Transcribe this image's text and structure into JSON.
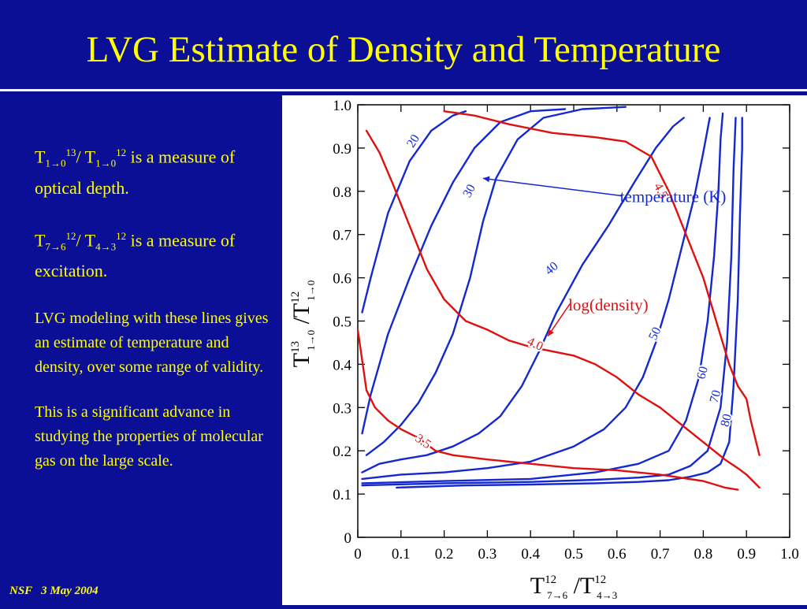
{
  "slide": {
    "title": "LVG Estimate of Density and Temperature",
    "footer": "NSF   3 May 2004",
    "bullets": [
      {
        "t": "T",
        "s1": "1→0",
        "p1": "13",
        "mid": "/ T",
        "s2": "1→0",
        "p2": "12",
        "tail": "  is a measure of optical depth."
      },
      {
        "t": "T",
        "s1": "7→6",
        "p1": "12",
        "mid": "/ T",
        "s2": "4→3",
        "p2": "12",
        "tail": "  is a measure of excitation."
      }
    ],
    "paragraphs": [
      "LVG modeling with these lines gives an estimate of temperature and density, over some range of validity.",
      "This is a significant advance in studying the properties of molecular gas on the large scale."
    ]
  },
  "chart_data": {
    "type": "line",
    "title": "",
    "xlim": [
      0,
      1.0
    ],
    "ylim": [
      0,
      1.0
    ],
    "xticks": [
      "0",
      "0.1",
      "0.2",
      "0.3",
      "0.4",
      "0.5",
      "0.6",
      "0.7",
      "0.8",
      "0.9",
      "1.0"
    ],
    "yticks": [
      "0",
      "0.1",
      "0.2",
      "0.3",
      "0.4",
      "0.5",
      "0.6",
      "0.7",
      "0.8",
      "0.9",
      "1.0"
    ],
    "xlabel": {
      "main": "T",
      "sup1": "12",
      "sub1": "7→6",
      "sep": " /T",
      "sup2": "12",
      "sub2": "4→3"
    },
    "ylabel": {
      "main": "T",
      "sup1": "13",
      "sub1": "1→0",
      "sep": " /T",
      "sup2": "12",
      "sub2": "1→0"
    },
    "annotations": [
      {
        "text": "temperature (K)",
        "color": "#1428d2",
        "x": 0.73,
        "y": 0.775,
        "arrow_to": [
          0.29,
          0.83
        ]
      },
      {
        "text": "log(density)",
        "color": "#e01010",
        "x": 0.58,
        "y": 0.525,
        "arrow_to": [
          0.44,
          0.465
        ]
      }
    ],
    "temperature_color": "#1428d2",
    "density_color": "#e01010",
    "temperature_series": [
      {
        "name": "20",
        "label_at": [
          0.13,
          0.915
        ],
        "label_angle": -58,
        "points": [
          [
            0.01,
            0.52
          ],
          [
            0.03,
            0.6
          ],
          [
            0.07,
            0.75
          ],
          [
            0.12,
            0.87
          ],
          [
            0.17,
            0.94
          ],
          [
            0.22,
            0.975
          ],
          [
            0.25,
            0.985
          ]
        ]
      },
      {
        "name": "",
        "points": [
          [
            0.01,
            0.24
          ],
          [
            0.03,
            0.33
          ],
          [
            0.07,
            0.47
          ],
          [
            0.12,
            0.6
          ],
          [
            0.17,
            0.72
          ],
          [
            0.22,
            0.82
          ],
          [
            0.27,
            0.9
          ],
          [
            0.33,
            0.96
          ],
          [
            0.4,
            0.985
          ],
          [
            0.48,
            0.99
          ]
        ]
      },
      {
        "name": "30",
        "label_at": [
          0.26,
          0.8
        ],
        "label_angle": -62,
        "points": [
          [
            0.02,
            0.19
          ],
          [
            0.06,
            0.22
          ],
          [
            0.1,
            0.26
          ],
          [
            0.14,
            0.31
          ],
          [
            0.18,
            0.38
          ],
          [
            0.22,
            0.47
          ],
          [
            0.26,
            0.6
          ],
          [
            0.29,
            0.73
          ],
          [
            0.32,
            0.83
          ],
          [
            0.37,
            0.92
          ],
          [
            0.43,
            0.97
          ],
          [
            0.52,
            0.99
          ],
          [
            0.62,
            0.995
          ]
        ]
      },
      {
        "name": "40",
        "label_at": [
          0.45,
          0.62
        ],
        "label_angle": -40,
        "points": [
          [
            0.01,
            0.15
          ],
          [
            0.05,
            0.17
          ],
          [
            0.1,
            0.18
          ],
          [
            0.16,
            0.19
          ],
          [
            0.22,
            0.21
          ],
          [
            0.28,
            0.24
          ],
          [
            0.33,
            0.28
          ],
          [
            0.38,
            0.35
          ],
          [
            0.42,
            0.43
          ],
          [
            0.46,
            0.52
          ],
          [
            0.52,
            0.63
          ],
          [
            0.58,
            0.72
          ],
          [
            0.64,
            0.82
          ],
          [
            0.69,
            0.9
          ],
          [
            0.73,
            0.95
          ],
          [
            0.755,
            0.97
          ]
        ]
      },
      {
        "name": "50",
        "label_at": [
          0.69,
          0.47
        ],
        "label_angle": -65,
        "points": [
          [
            0.01,
            0.135
          ],
          [
            0.1,
            0.145
          ],
          [
            0.2,
            0.15
          ],
          [
            0.3,
            0.16
          ],
          [
            0.4,
            0.175
          ],
          [
            0.5,
            0.21
          ],
          [
            0.57,
            0.25
          ],
          [
            0.62,
            0.3
          ],
          [
            0.66,
            0.37
          ],
          [
            0.69,
            0.45
          ],
          [
            0.72,
            0.55
          ],
          [
            0.75,
            0.67
          ],
          [
            0.78,
            0.79
          ],
          [
            0.8,
            0.89
          ],
          [
            0.815,
            0.97
          ]
        ]
      },
      {
        "name": "60",
        "label_at": [
          0.8,
          0.38
        ],
        "label_angle": -75,
        "points": [
          [
            0.01,
            0.125
          ],
          [
            0.2,
            0.13
          ],
          [
            0.4,
            0.135
          ],
          [
            0.55,
            0.15
          ],
          [
            0.65,
            0.17
          ],
          [
            0.72,
            0.2
          ],
          [
            0.76,
            0.27
          ],
          [
            0.79,
            0.37
          ],
          [
            0.81,
            0.5
          ],
          [
            0.825,
            0.65
          ],
          [
            0.835,
            0.8
          ],
          [
            0.84,
            0.92
          ],
          [
            0.845,
            0.98
          ]
        ]
      },
      {
        "name": "70",
        "label_at": [
          0.83,
          0.325
        ],
        "label_angle": -75,
        "points": [
          [
            0.01,
            0.12
          ],
          [
            0.2,
            0.125
          ],
          [
            0.4,
            0.128
          ],
          [
            0.55,
            0.133
          ],
          [
            0.65,
            0.138
          ],
          [
            0.72,
            0.145
          ],
          [
            0.77,
            0.165
          ],
          [
            0.81,
            0.2
          ],
          [
            0.84,
            0.3
          ],
          [
            0.855,
            0.45
          ],
          [
            0.865,
            0.65
          ],
          [
            0.87,
            0.85
          ],
          [
            0.875,
            0.97
          ]
        ]
      },
      {
        "name": "80",
        "label_at": [
          0.855,
          0.27
        ],
        "label_angle": -75,
        "points": [
          [
            0.09,
            0.115
          ],
          [
            0.25,
            0.12
          ],
          [
            0.4,
            0.122
          ],
          [
            0.55,
            0.125
          ],
          [
            0.65,
            0.128
          ],
          [
            0.72,
            0.132
          ],
          [
            0.77,
            0.14
          ],
          [
            0.81,
            0.15
          ],
          [
            0.84,
            0.17
          ],
          [
            0.86,
            0.22
          ],
          [
            0.87,
            0.35
          ],
          [
            0.88,
            0.55
          ],
          [
            0.885,
            0.75
          ],
          [
            0.89,
            0.9
          ],
          [
            0.89,
            0.97
          ]
        ]
      }
    ],
    "density_series": [
      {
        "name": "4.5",
        "label_at": [
          0.7,
          0.8
        ],
        "label_angle": 62,
        "points": [
          [
            0.2,
            0.985
          ],
          [
            0.27,
            0.975
          ],
          [
            0.35,
            0.955
          ],
          [
            0.45,
            0.935
          ],
          [
            0.55,
            0.925
          ],
          [
            0.62,
            0.915
          ],
          [
            0.68,
            0.88
          ],
          [
            0.72,
            0.8
          ],
          [
            0.76,
            0.7
          ],
          [
            0.8,
            0.6
          ],
          [
            0.83,
            0.5
          ],
          [
            0.86,
            0.4
          ],
          [
            0.88,
            0.35
          ],
          [
            0.9,
            0.32
          ],
          [
            0.91,
            0.27
          ],
          [
            0.93,
            0.19
          ]
        ]
      },
      {
        "name": "4.0",
        "label_at": [
          0.41,
          0.445
        ],
        "label_angle": 25,
        "points": [
          [
            0.02,
            0.94
          ],
          [
            0.05,
            0.89
          ],
          [
            0.08,
            0.82
          ],
          [
            0.12,
            0.72
          ],
          [
            0.16,
            0.62
          ],
          [
            0.2,
            0.55
          ],
          [
            0.25,
            0.5
          ],
          [
            0.3,
            0.48
          ],
          [
            0.35,
            0.455
          ],
          [
            0.4,
            0.44
          ],
          [
            0.45,
            0.43
          ],
          [
            0.5,
            0.42
          ],
          [
            0.55,
            0.4
          ],
          [
            0.6,
            0.37
          ],
          [
            0.65,
            0.33
          ],
          [
            0.7,
            0.3
          ],
          [
            0.75,
            0.26
          ],
          [
            0.8,
            0.22
          ],
          [
            0.85,
            0.18
          ],
          [
            0.88,
            0.16
          ],
          [
            0.9,
            0.145
          ],
          [
            0.93,
            0.115
          ]
        ]
      },
      {
        "name": "3.5",
        "label_at": [
          0.15,
          0.22
        ],
        "label_angle": 35,
        "points": [
          [
            0.0,
            0.48
          ],
          [
            0.01,
            0.41
          ],
          [
            0.02,
            0.34
          ],
          [
            0.04,
            0.3
          ],
          [
            0.07,
            0.27
          ],
          [
            0.1,
            0.25
          ],
          [
            0.14,
            0.23
          ],
          [
            0.18,
            0.2
          ],
          [
            0.22,
            0.19
          ],
          [
            0.3,
            0.18
          ],
          [
            0.4,
            0.17
          ],
          [
            0.5,
            0.16
          ],
          [
            0.6,
            0.155
          ],
          [
            0.7,
            0.145
          ],
          [
            0.8,
            0.13
          ],
          [
            0.85,
            0.115
          ],
          [
            0.88,
            0.11
          ]
        ]
      }
    ]
  }
}
